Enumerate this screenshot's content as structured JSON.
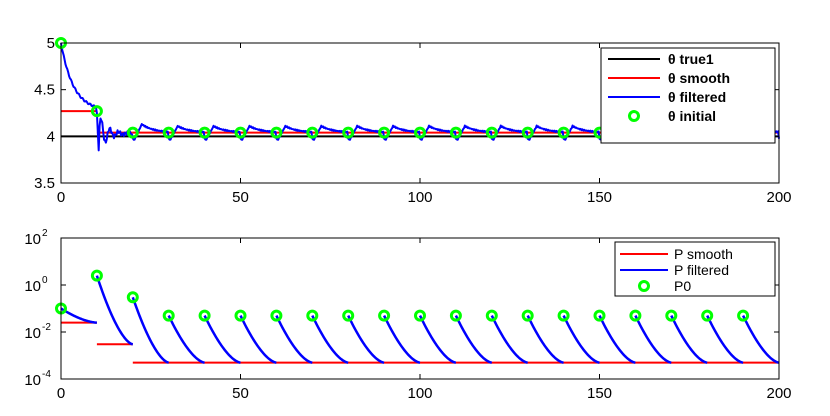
{
  "chart_data": [
    {
      "type": "line",
      "title": "",
      "xlabel": "",
      "ylabel": "",
      "xlim": [
        0,
        200
      ],
      "ylim": [
        3.5,
        5
      ],
      "yscale": "linear",
      "grid": false,
      "legend_position": "top-right",
      "x_ticks": [
        "0",
        "50",
        "100",
        "150",
        "200"
      ],
      "y_ticks": [
        "3.5",
        "4",
        "4.5",
        "5"
      ],
      "colors": {
        "true": "#000000",
        "smooth": "#ff0000",
        "filtered": "#0000ff",
        "marker": "#00ff00"
      },
      "series": [
        {
          "name": "θ true1",
          "kind": "line",
          "color": "#000000",
          "x": [
            0,
            200
          ],
          "y": [
            4.0,
            4.0
          ]
        },
        {
          "name": "θ smooth",
          "kind": "step",
          "color": "#ff0000",
          "segments": [
            [
              0,
              10,
              4.27
            ],
            [
              10,
              20,
              4.04
            ],
            [
              20,
              200,
              4.04
            ]
          ]
        },
        {
          "name": "θ filtered",
          "kind": "line",
          "color": "#0000ff"
        },
        {
          "name": "θ initial",
          "kind": "marker",
          "color": "#00ff00",
          "x": [
            0,
            10,
            20,
            30,
            40,
            50,
            60,
            70,
            80,
            90,
            100,
            110,
            120,
            130,
            140,
            150,
            160,
            170,
            180,
            190
          ],
          "y": [
            5.0,
            4.27,
            4.04,
            4.04,
            4.04,
            4.04,
            4.04,
            4.04,
            4.04,
            4.04,
            4.04,
            4.04,
            4.04,
            4.04,
            4.04,
            4.04,
            4.04,
            4.04,
            4.04,
            4.04
          ]
        }
      ]
    },
    {
      "type": "line",
      "title": "",
      "xlabel": "",
      "ylabel": "",
      "xlim": [
        0,
        200
      ],
      "ylim": [
        0.0001,
        100
      ],
      "yscale": "log",
      "grid": false,
      "legend_position": "top-right",
      "x_ticks": [
        "0",
        "50",
        "100",
        "150",
        "200"
      ],
      "y_ticks": [
        {
          "base": "10",
          "exp": "-4",
          "value": 0.0001
        },
        {
          "base": "10",
          "exp": "-2",
          "value": 0.01
        },
        {
          "base": "10",
          "exp": "0",
          "value": 1
        },
        {
          "base": "10",
          "exp": "2",
          "value": 100
        }
      ],
      "series": [
        {
          "name": "P smooth",
          "kind": "step",
          "color": "#ff0000",
          "segments": [
            [
              0,
              10,
              0.025
            ],
            [
              10,
              20,
              0.003
            ],
            [
              20,
              200,
              0.0005
            ]
          ]
        },
        {
          "name": "P filtered",
          "kind": "line",
          "color": "#0000ff",
          "restarts": [
            {
              "x0": 0,
              "y0": 0.1,
              "y_end": 0.025
            },
            {
              "x0": 10,
              "y0": 2.5,
              "y_end": 0.003
            },
            {
              "x0": 20,
              "y0": 0.3,
              "y_end": 0.0005
            },
            {
              "x0": 30,
              "y0": 0.05,
              "y_end": 0.0005
            },
            {
              "x0": 40,
              "y0": 0.05,
              "y_end": 0.0005
            },
            {
              "x0": 50,
              "y0": 0.05,
              "y_end": 0.0005
            },
            {
              "x0": 60,
              "y0": 0.05,
              "y_end": 0.0005
            },
            {
              "x0": 70,
              "y0": 0.05,
              "y_end": 0.0005
            },
            {
              "x0": 80,
              "y0": 0.05,
              "y_end": 0.0005
            },
            {
              "x0": 90,
              "y0": 0.05,
              "y_end": 0.0005
            },
            {
              "x0": 100,
              "y0": 0.05,
              "y_end": 0.0005
            },
            {
              "x0": 110,
              "y0": 0.05,
              "y_end": 0.0005
            },
            {
              "x0": 120,
              "y0": 0.05,
              "y_end": 0.0005
            },
            {
              "x0": 130,
              "y0": 0.05,
              "y_end": 0.0005
            },
            {
              "x0": 140,
              "y0": 0.05,
              "y_end": 0.0005
            },
            {
              "x0": 150,
              "y0": 0.05,
              "y_end": 0.0005
            },
            {
              "x0": 160,
              "y0": 0.05,
              "y_end": 0.0005
            },
            {
              "x0": 170,
              "y0": 0.05,
              "y_end": 0.0005
            },
            {
              "x0": 180,
              "y0": 0.05,
              "y_end": 0.0005
            },
            {
              "x0": 190,
              "y0": 0.05,
              "y_end": 0.0005
            }
          ]
        },
        {
          "name": "P0",
          "kind": "marker",
          "color": "#00ff00",
          "x": [
            0,
            10,
            20,
            30,
            40,
            50,
            60,
            70,
            80,
            90,
            100,
            110,
            120,
            130,
            140,
            150,
            160,
            170,
            180,
            190
          ],
          "y": [
            0.1,
            2.5,
            0.3,
            0.05,
            0.05,
            0.05,
            0.05,
            0.05,
            0.05,
            0.05,
            0.05,
            0.05,
            0.05,
            0.05,
            0.05,
            0.05,
            0.05,
            0.05,
            0.05,
            0.05
          ]
        }
      ]
    }
  ]
}
